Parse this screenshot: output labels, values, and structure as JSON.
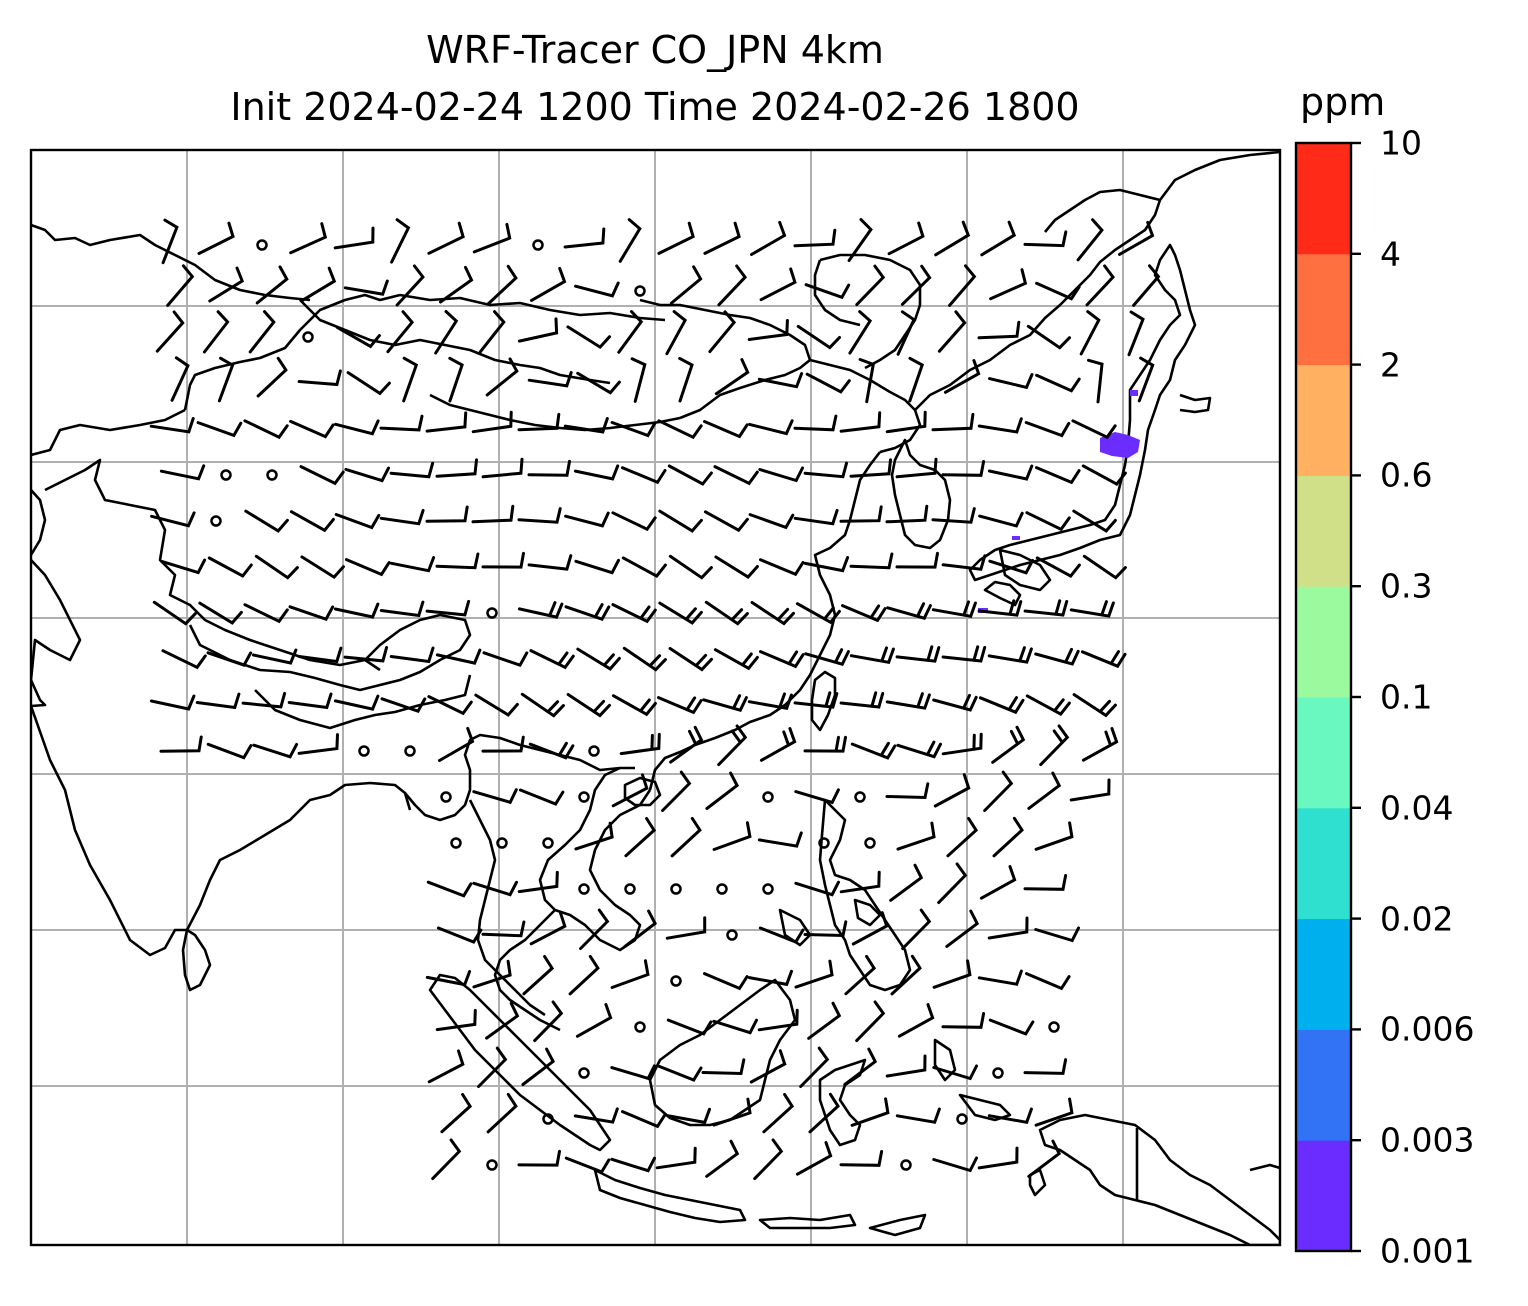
{
  "title": {
    "line1": "WRF-Tracer CO_JPN 4km",
    "line2": "Init 2024-02-24 1200 Time 2024-02-26 1800"
  },
  "colorbar": {
    "unit": "ppm",
    "levels": [
      "0.001",
      "0.003",
      "0.006",
      "0.02",
      "0.04",
      "0.1",
      "0.3",
      "0.6",
      "2",
      "4",
      "10"
    ],
    "colors": [
      "#6a2cff",
      "#3272f5",
      "#00b0ee",
      "#2fe0d0",
      "#68f8c0",
      "#9cfa9e",
      "#d0e088",
      "#ffb060",
      "#ff7040",
      "#ff2a18"
    ]
  },
  "map": {
    "coastline_color": "#000000",
    "gridline_color": "#b0b0b0",
    "tracer_plume_color": "#6a2cff",
    "features": [
      "india-coast",
      "sri-lanka",
      "china-coast",
      "korea",
      "japan",
      "taiwan",
      "hainan",
      "indochina",
      "malay-peninsula",
      "sumatra",
      "borneo",
      "java",
      "sulawesi",
      "philippines",
      "new-guinea"
    ],
    "overlays": [
      "wind-barbs",
      "calm-circles",
      "co-tracer-concentration"
    ]
  }
}
